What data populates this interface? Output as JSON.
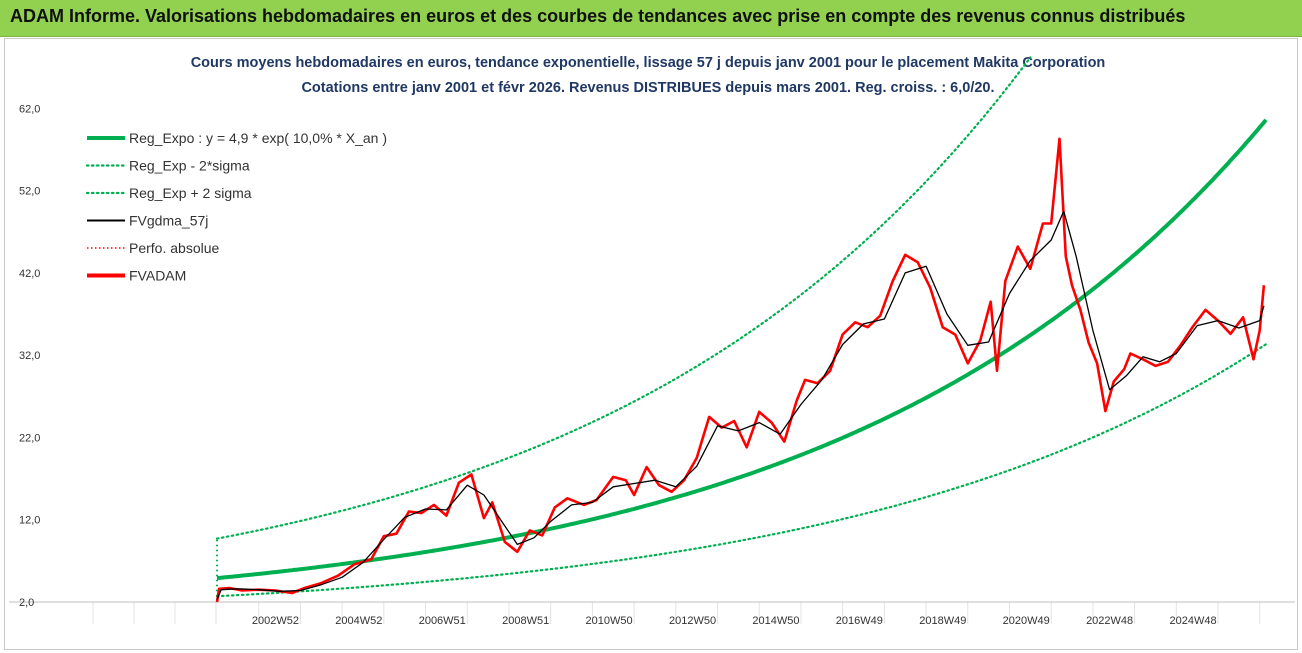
{
  "banner": {
    "title": "ADAM Informe. Valorisations hebdomadaires en euros et des courbes de tendances avec prise en compte des revenus connus distribués"
  },
  "colors": {
    "banner_bg": "#92d050",
    "reg": "#00b050",
    "fvgdma": "#000000",
    "fvadam": "#ff0000",
    "perfo": "#ff0000",
    "title_text": "#1f3864"
  },
  "chart_data": {
    "type": "line",
    "title_line1": "Cours moyens hebdomadaires en euros, tendance exponentielle, lissage 57 j depuis janv 2001 pour le placement Makita Corporation",
    "title_line2": "Cotations entre janv 2001 et févr 2026. Revenus DISTRIBUES depuis mars 2001. Reg. croiss. : 6,0/20.",
    "xlabel": "",
    "ylabel": "",
    "x_range": [
      "2001-01",
      "2026-02"
    ],
    "xlim": [
      2001.0,
      2026.15
    ],
    "ylim": [
      2.0,
      68.0
    ],
    "yticks": [
      2.0,
      12.0,
      22.0,
      32.0,
      42.0,
      52.0,
      62.0
    ],
    "ytick_labels": [
      "2,0",
      "12,0",
      "22,0",
      "32,0",
      "42,0",
      "52,0",
      "62,0"
    ],
    "xtick_labels": [
      "2002W52",
      "2004W52",
      "2006W51",
      "2008W51",
      "2010W50",
      "2012W50",
      "2014W50",
      "2016W49",
      "2018W49",
      "2020W49",
      "2022W48",
      "2024W48"
    ],
    "xtick_positions": [
      2003.0,
      2005.0,
      2007.0,
      2009.0,
      2011.0,
      2013.0,
      2015.0,
      2017.0,
      2019.0,
      2021.0,
      2023.0,
      2025.0
    ],
    "grid": {
      "vertical": true,
      "horizontal": false
    },
    "legend_position": "top-left",
    "legend": [
      {
        "key": "reg",
        "label": "Reg_Expo : y = 4,9 * exp( 10,0% *  X_an )",
        "style": "solid-thick",
        "color": "#00b050"
      },
      {
        "key": "lower",
        "label": "Reg_Exp - 2*sigma",
        "style": "dotted",
        "color": "#00b050"
      },
      {
        "key": "upper",
        "label": "Reg_Exp + 2 sigma",
        "style": "dotted",
        "color": "#00b050"
      },
      {
        "key": "fvgdma",
        "label": "FVgdma_57j",
        "style": "solid",
        "color": "#000000"
      },
      {
        "key": "perfo",
        "label": "Perfo. absolue",
        "style": "dotted-thin",
        "color": "#ff0000"
      },
      {
        "key": "fvadam",
        "label": "FVADAM",
        "style": "solid-thick",
        "color": "#ff0000"
      }
    ],
    "regression": {
      "a": 4.9,
      "b": 0.1,
      "x0": 2001.0,
      "lower_factor": 0.55,
      "upper_factor": 1.98
    },
    "series": [
      {
        "name": "FVADAM",
        "x": [
          2001.0,
          2001.05,
          2001.3,
          2001.6,
          2002.0,
          2002.4,
          2002.8,
          2003.1,
          2003.5,
          2003.9,
          2004.3,
          2004.7,
          2005.0,
          2005.3,
          2005.6,
          2005.9,
          2006.2,
          2006.5,
          2006.8,
          2007.1,
          2007.4,
          2007.6,
          2007.9,
          2008.2,
          2008.5,
          2008.8,
          2009.1,
          2009.4,
          2009.8,
          2010.1,
          2010.5,
          2010.8,
          2011.0,
          2011.3,
          2011.6,
          2011.9,
          2012.2,
          2012.5,
          2012.8,
          2013.1,
          2013.4,
          2013.7,
          2014.0,
          2014.3,
          2014.6,
          2014.9,
          2015.1,
          2015.4,
          2015.7,
          2016.0,
          2016.3,
          2016.6,
          2016.9,
          2017.2,
          2017.5,
          2017.8,
          2018.1,
          2018.4,
          2018.7,
          2019.0,
          2019.3,
          2019.55,
          2019.7,
          2019.9,
          2020.2,
          2020.5,
          2020.8,
          2021.0,
          2021.2,
          2021.35,
          2021.5,
          2021.7,
          2021.9,
          2022.1,
          2022.3,
          2022.5,
          2022.75,
          2022.9,
          2023.2,
          2023.5,
          2023.8,
          2024.1,
          2024.4,
          2024.7,
          2025.0,
          2025.3,
          2025.6,
          2025.85,
          2026.0,
          2026.1
        ],
        "y": [
          2.0,
          3.6,
          3.7,
          3.4,
          3.5,
          3.4,
          3.1,
          3.7,
          4.3,
          5.2,
          6.6,
          7.2,
          10.0,
          10.3,
          13.0,
          12.8,
          13.8,
          12.5,
          16.5,
          17.5,
          12.2,
          14.1,
          9.3,
          8.1,
          10.7,
          10.1,
          13.5,
          14.6,
          13.8,
          14.4,
          17.2,
          16.8,
          15.0,
          18.4,
          16.2,
          15.4,
          16.8,
          19.5,
          24.5,
          23.2,
          24.0,
          20.8,
          25.1,
          23.8,
          21.5,
          26.5,
          29.0,
          28.6,
          30.1,
          34.5,
          36.0,
          35.4,
          36.8,
          41.0,
          44.2,
          43.3,
          40.2,
          35.4,
          34.5,
          31.0,
          33.8,
          38.5,
          30.1,
          41.0,
          45.2,
          42.5,
          48.0,
          48.0,
          58.3,
          44.0,
          40.5,
          37.5,
          33.5,
          31.0,
          25.2,
          28.8,
          30.3,
          32.2,
          31.5,
          30.7,
          31.2,
          33.2,
          35.5,
          37.5,
          36.2,
          34.6,
          36.6,
          31.5,
          35.0,
          40.5
        ]
      },
      {
        "name": "FVgdma_57j",
        "x": [
          2001.0,
          2001.1,
          2001.5,
          2002.0,
          2002.5,
          2003.0,
          2003.5,
          2004.0,
          2004.5,
          2005.0,
          2005.5,
          2006.0,
          2006.5,
          2007.0,
          2007.4,
          2007.8,
          2008.2,
          2008.6,
          2009.0,
          2009.5,
          2010.0,
          2010.5,
          2011.0,
          2011.5,
          2012.0,
          2012.5,
          2013.0,
          2013.5,
          2014.0,
          2014.5,
          2015.0,
          2015.5,
          2016.0,
          2016.5,
          2017.0,
          2017.5,
          2018.0,
          2018.5,
          2019.0,
          2019.5,
          2020.0,
          2020.5,
          2021.0,
          2021.3,
          2021.6,
          2022.0,
          2022.4,
          2022.8,
          2023.2,
          2023.6,
          2024.0,
          2024.5,
          2025.0,
          2025.5,
          2026.0,
          2026.1
        ],
        "y": [
          2.3,
          3.5,
          3.6,
          3.5,
          3.3,
          3.4,
          4.1,
          5.0,
          6.8,
          9.6,
          12.3,
          13.3,
          13.2,
          16.2,
          15.0,
          12.0,
          9.0,
          9.8,
          11.8,
          13.8,
          14.1,
          16.0,
          16.4,
          16.8,
          16.0,
          18.5,
          23.4,
          22.8,
          23.8,
          22.4,
          26.0,
          29.0,
          33.3,
          35.8,
          36.4,
          42.0,
          42.8,
          37.0,
          33.2,
          33.6,
          39.5,
          43.5,
          46.0,
          49.5,
          44.0,
          35.0,
          27.8,
          29.5,
          31.8,
          31.2,
          32.2,
          35.6,
          36.2,
          35.3,
          36.2,
          38.0
        ]
      },
      {
        "name": "Reg_Expo",
        "derived_from": "regression"
      },
      {
        "name": "Reg_Exp - 2*sigma",
        "derived_from": "regression"
      },
      {
        "name": "Reg_Exp + 2 sigma",
        "derived_from": "regression"
      }
    ]
  }
}
